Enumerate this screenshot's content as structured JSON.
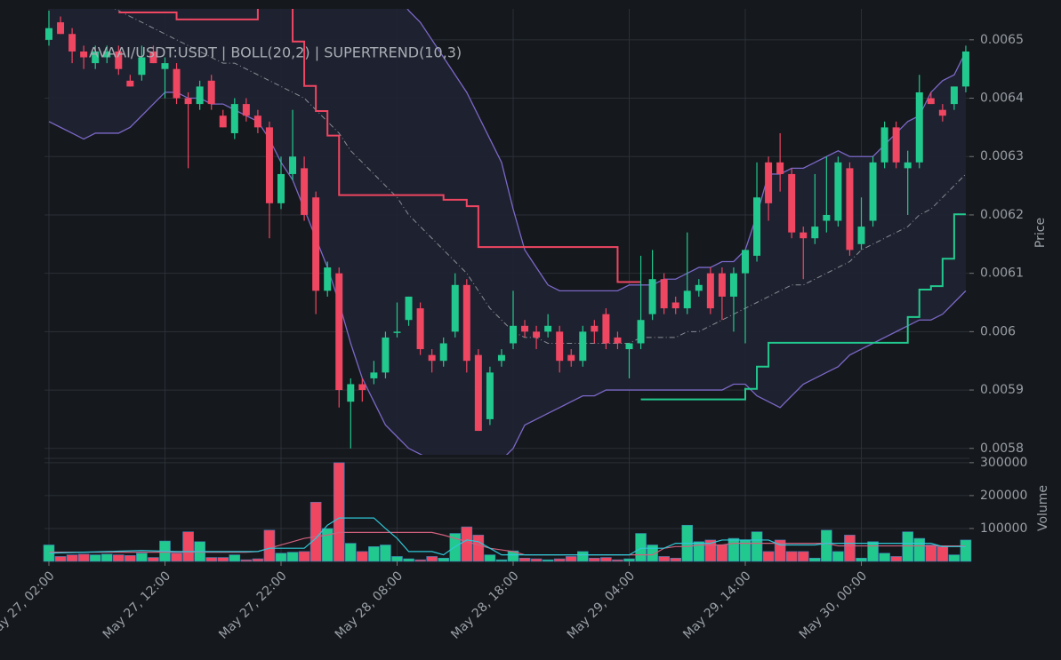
{
  "chart_data": {
    "type": "candlestick",
    "title": "AVAAI/USDT:USDT | BOLL(20,2) | SUPERTREND(10,3)",
    "ylabel": "Price",
    "y2label": "Volume",
    "categories": [
      "May 27, 02:00",
      null,
      null,
      null,
      null,
      null,
      null,
      null,
      null,
      null,
      "May 27, 12:00",
      null,
      null,
      null,
      null,
      null,
      null,
      null,
      null,
      null,
      "May 27, 22:00",
      null,
      null,
      null,
      null,
      null,
      null,
      null,
      null,
      null,
      "May 28, 08:00",
      null,
      null,
      null,
      null,
      null,
      null,
      null,
      null,
      null,
      "May 28, 18:00",
      null,
      null,
      null,
      null,
      null,
      null,
      null,
      null,
      null,
      "May 29, 04:00",
      null,
      null,
      null,
      null,
      null,
      null,
      null,
      null,
      null,
      "May 29, 14:00",
      null,
      null,
      null,
      null,
      null,
      null,
      null,
      null,
      null,
      "May 30, 00:00",
      null,
      null,
      null,
      null,
      null,
      null,
      null,
      null,
      null
    ],
    "open": [
      0.0065,
      0.00653,
      0.00651,
      0.00648,
      0.00646,
      0.00647,
      0.00648,
      0.00643,
      0.00644,
      0.00648,
      0.00645,
      0.00645,
      0.0064,
      0.00639,
      0.00643,
      0.00637,
      0.00634,
      0.00639,
      0.00637,
      0.00635,
      0.00622,
      0.00627,
      0.00628,
      0.00623,
      0.00607,
      0.0061,
      0.00588,
      0.00591,
      0.00592,
      0.00593,
      0.006,
      0.00602,
      0.00604,
      0.00596,
      0.00595,
      0.006,
      0.00608,
      0.00596,
      0.00585,
      0.00595,
      0.00598,
      0.00601,
      0.006,
      0.006,
      0.006,
      0.00596,
      0.00595,
      0.00601,
      0.00603,
      0.00599,
      0.00597,
      0.00598,
      0.00603,
      0.00609,
      0.00605,
      0.00604,
      0.00607,
      0.0061,
      0.0061,
      0.00606,
      0.0061,
      0.00613,
      0.00629,
      0.00629,
      0.00627,
      0.00617,
      0.00616,
      0.00619,
      0.00619,
      0.00628,
      0.00615,
      0.00619,
      0.00629,
      0.00635,
      0.00628,
      0.00629,
      0.0064,
      0.00638,
      0.00639,
      0.00642
    ],
    "high": [
      0.00655,
      0.00654,
      0.00652,
      0.00649,
      0.00649,
      0.00649,
      0.00649,
      0.00644,
      0.00649,
      0.00649,
      0.00647,
      0.00646,
      0.00641,
      0.00643,
      0.00644,
      0.00638,
      0.0064,
      0.0064,
      0.00638,
      0.00636,
      0.0063,
      0.00638,
      0.0063,
      0.00624,
      0.00612,
      0.00611,
      0.00592,
      0.00592,
      0.00595,
      0.006,
      0.00605,
      0.00606,
      0.00605,
      0.00597,
      0.00599,
      0.0061,
      0.00609,
      0.00597,
      0.00594,
      0.00597,
      0.00607,
      0.00602,
      0.00601,
      0.00603,
      0.00601,
      0.00597,
      0.00601,
      0.00602,
      0.00604,
      0.006,
      0.00598,
      0.00613,
      0.00614,
      0.0061,
      0.00606,
      0.00617,
      0.00609,
      0.00611,
      0.00611,
      0.00611,
      0.00614,
      0.00629,
      0.0063,
      0.00634,
      0.00628,
      0.00618,
      0.00627,
      0.0063,
      0.0063,
      0.00629,
      0.00623,
      0.0063,
      0.00636,
      0.00636,
      0.00631,
      0.00644,
      0.00641,
      0.00639,
      0.00642,
      0.00649
    ],
    "low": [
      0.00649,
      0.00651,
      0.00646,
      0.00645,
      0.00645,
      0.00646,
      0.00644,
      0.00642,
      0.00643,
      0.00646,
      0.0064,
      0.00639,
      0.00628,
      0.00638,
      0.00638,
      0.00635,
      0.00633,
      0.00636,
      0.00634,
      0.00616,
      0.00621,
      0.00626,
      0.00619,
      0.00603,
      0.00606,
      0.00587,
      0.0058,
      0.00588,
      0.00591,
      0.00592,
      0.00599,
      0.00601,
      0.00596,
      0.00593,
      0.00594,
      0.00599,
      0.00593,
      0.00583,
      0.00584,
      0.00594,
      0.00597,
      0.00599,
      0.00597,
      0.00599,
      0.00593,
      0.00594,
      0.00594,
      0.00598,
      0.00597,
      0.00597,
      0.00592,
      0.00597,
      0.00602,
      0.00603,
      0.00603,
      0.00603,
      0.00606,
      0.00603,
      0.00602,
      0.006,
      0.00598,
      0.00612,
      0.00619,
      0.00624,
      0.00616,
      0.00609,
      0.00615,
      0.00617,
      0.00618,
      0.00613,
      0.00614,
      0.00618,
      0.00628,
      0.00628,
      0.0062,
      0.00628,
      0.00639,
      0.00636,
      0.00638,
      0.00641
    ],
    "close": [
      0.00652,
      0.00651,
      0.00648,
      0.00647,
      0.00648,
      0.00648,
      0.00645,
      0.00642,
      0.00647,
      0.00646,
      0.00646,
      0.0064,
      0.00639,
      0.00642,
      0.00639,
      0.00635,
      0.00639,
      0.00637,
      0.00635,
      0.00622,
      0.00627,
      0.0063,
      0.0062,
      0.00607,
      0.00611,
      0.0059,
      0.00591,
      0.0059,
      0.00593,
      0.00599,
      0.006,
      0.00606,
      0.00597,
      0.00595,
      0.00598,
      0.00608,
      0.00595,
      0.00583,
      0.00593,
      0.00596,
      0.00601,
      0.006,
      0.00599,
      0.00601,
      0.00595,
      0.00595,
      0.006,
      0.006,
      0.00598,
      0.00598,
      0.00598,
      0.00602,
      0.00609,
      0.00604,
      0.00604,
      0.00607,
      0.00608,
      0.00604,
      0.00606,
      0.0061,
      0.00614,
      0.00623,
      0.00622,
      0.00627,
      0.00617,
      0.00616,
      0.00618,
      0.0062,
      0.00629,
      0.00614,
      0.00618,
      0.00629,
      0.00635,
      0.00629,
      0.00629,
      0.00641,
      0.00639,
      0.00637,
      0.00642,
      0.00648
    ],
    "volume": [
      50000,
      15000,
      20000,
      22000,
      20000,
      22000,
      20000,
      18000,
      25000,
      12000,
      62000,
      25000,
      90000,
      60000,
      12000,
      12000,
      20000,
      5000,
      8000,
      95000,
      25000,
      28000,
      30000,
      180000,
      100000,
      300000,
      55000,
      30000,
      45000,
      50000,
      15000,
      8000,
      5000,
      15000,
      10000,
      85000,
      105000,
      80000,
      20000,
      5000,
      32000,
      10000,
      8000,
      5000,
      8000,
      15000,
      30000,
      10000,
      12000,
      5000,
      8000,
      85000,
      50000,
      15000,
      10000,
      110000,
      60000,
      65000,
      50000,
      70000,
      65000,
      90000,
      30000,
      65000,
      30000,
      30000,
      10000,
      95000,
      30000,
      80000,
      10000,
      60000,
      25000,
      15000,
      90000,
      70000,
      50000,
      45000,
      20000,
      65000
    ],
    "bollinger": {
      "upper": [
        0.00668,
        0.00667,
        0.00667,
        0.00666,
        0.00665,
        0.00664,
        0.00663,
        0.00662,
        0.00661,
        0.0066,
        0.0066,
        0.00659,
        0.00659,
        0.00658,
        0.00658,
        0.00657,
        0.00657,
        0.00656,
        0.00656,
        0.00657,
        0.0066,
        0.00662,
        0.00664,
        0.00667,
        0.00668,
        0.0067,
        0.00669,
        0.00667,
        0.00665,
        0.00662,
        0.00658,
        0.00655,
        0.00653,
        0.0065,
        0.00647,
        0.00644,
        0.00641,
        0.00637,
        0.00633,
        0.00629,
        0.00621,
        0.00614,
        0.00611,
        0.00608,
        0.00607,
        0.00607,
        0.00607,
        0.00607,
        0.00607,
        0.00607,
        0.00608,
        0.00608,
        0.00608,
        0.00609,
        0.00609,
        0.0061,
        0.00611,
        0.00611,
        0.00612,
        0.00612,
        0.00614,
        0.0062,
        0.00627,
        0.00627,
        0.00628,
        0.00628,
        0.00629,
        0.0063,
        0.00631,
        0.0063,
        0.0063,
        0.0063,
        0.00632,
        0.00634,
        0.00636,
        0.00637,
        0.00641,
        0.00643,
        0.00644,
        0.00648
      ],
      "middle": [
        0.00662,
        0.00661,
        0.0066,
        0.00659,
        0.00657,
        0.00656,
        0.00655,
        0.00654,
        0.00653,
        0.00652,
        0.00651,
        0.0065,
        0.00649,
        0.00648,
        0.00647,
        0.00646,
        0.00646,
        0.00645,
        0.00644,
        0.00643,
        0.00642,
        0.00641,
        0.0064,
        0.00638,
        0.00636,
        0.00634,
        0.00631,
        0.00629,
        0.00627,
        0.00625,
        0.00623,
        0.0062,
        0.00618,
        0.00616,
        0.00614,
        0.00612,
        0.0061,
        0.00607,
        0.00604,
        0.00602,
        0.006,
        0.00599,
        0.00599,
        0.00598,
        0.00598,
        0.00598,
        0.00598,
        0.00598,
        0.00598,
        0.00598,
        0.00598,
        0.00599,
        0.00599,
        0.00599,
        0.00599,
        0.006,
        0.006,
        0.00601,
        0.00602,
        0.00603,
        0.00604,
        0.00605,
        0.00606,
        0.00607,
        0.00608,
        0.00608,
        0.00609,
        0.0061,
        0.00611,
        0.00612,
        0.00614,
        0.00615,
        0.00616,
        0.00617,
        0.00618,
        0.0062,
        0.00621,
        0.00623,
        0.00625,
        0.00627
      ],
      "lower": [
        0.00636,
        0.00635,
        0.00634,
        0.00633,
        0.00634,
        0.00634,
        0.00634,
        0.00635,
        0.00637,
        0.00639,
        0.00641,
        0.00641,
        0.0064,
        0.0064,
        0.00639,
        0.00639,
        0.00638,
        0.00637,
        0.00636,
        0.00633,
        0.00629,
        0.00626,
        0.00621,
        0.00616,
        0.00611,
        0.00605,
        0.00598,
        0.00592,
        0.00588,
        0.00584,
        0.00582,
        0.0058,
        0.00579,
        0.00578,
        0.00577,
        0.00577,
        0.00576,
        0.00576,
        0.00577,
        0.00578,
        0.0058,
        0.00584,
        0.00585,
        0.00586,
        0.00587,
        0.00588,
        0.00589,
        0.00589,
        0.0059,
        0.0059,
        0.0059,
        0.0059,
        0.0059,
        0.0059,
        0.0059,
        0.0059,
        0.0059,
        0.0059,
        0.0059,
        0.00591,
        0.00591,
        0.00589,
        0.00588,
        0.00587,
        0.00589,
        0.00591,
        0.00592,
        0.00593,
        0.00594,
        0.00596,
        0.00597,
        0.00598,
        0.00599,
        0.006,
        0.00601,
        0.00602,
        0.00602,
        0.00603,
        0.00605,
        0.00607
      ]
    },
    "supertrend": {
      "down": [
        null,
        null,
        null,
        null,
        null,
        null,
        0.006547,
        0.006547,
        0.006547,
        0.006547,
        0.006547,
        0.006535,
        0.006535,
        0.006535,
        0.006535,
        0.006535,
        0.006535,
        0.006535,
        0.00656,
        0.00656,
        0.00656,
        0.006497,
        0.006421,
        0.006378,
        0.006336,
        0.006234,
        0.006234,
        0.006234,
        0.006234,
        0.006234,
        0.006234,
        0.006234,
        0.006234,
        0.006234,
        0.006226,
        0.006226,
        0.006215,
        0.006145,
        0.006145,
        0.006145,
        0.006145,
        0.006145,
        0.006145,
        0.006145,
        0.006145,
        0.006145,
        0.006145,
        0.006145,
        0.006145,
        0.006085,
        0.006085,
        0.006085,
        null,
        null,
        null,
        null,
        null,
        null,
        null,
        null,
        null,
        null,
        null,
        null,
        null,
        null,
        null,
        null,
        null,
        null,
        null,
        null,
        null,
        null,
        null,
        null,
        null,
        null,
        null,
        null
      ],
      "up": [
        null,
        null,
        null,
        null,
        null,
        null,
        null,
        null,
        null,
        null,
        null,
        null,
        null,
        null,
        null,
        null,
        null,
        null,
        null,
        null,
        null,
        null,
        null,
        null,
        null,
        null,
        null,
        null,
        null,
        null,
        null,
        null,
        null,
        null,
        null,
        null,
        null,
        null,
        null,
        null,
        null,
        null,
        null,
        null,
        null,
        null,
        null,
        null,
        null,
        null,
        null,
        0.005884,
        0.005884,
        0.005884,
        0.005884,
        0.005884,
        0.005884,
        0.005884,
        0.005884,
        0.005884,
        0.005902,
        0.00594,
        0.005981,
        0.005981,
        0.005981,
        0.005981,
        0.005981,
        0.005981,
        0.005981,
        0.005981,
        0.005981,
        0.005981,
        0.005981,
        0.005981,
        0.006025,
        0.006072,
        0.006078,
        0.006125,
        0.006201,
        0.006201
      ]
    },
    "volume_ma": {
      "fast": [
        25000,
        26000,
        27000,
        28000,
        29000,
        30000,
        31000,
        32000,
        33000,
        32000,
        31000,
        30000,
        30000,
        30000,
        30000,
        30000,
        30000,
        30000,
        30000,
        40000,
        40000,
        40000,
        40000,
        70000,
        110000,
        132000,
        132000,
        132000,
        132000,
        100000,
        70000,
        30000,
        30000,
        30000,
        20000,
        45000,
        65000,
        60000,
        40000,
        20000,
        20000,
        20000,
        20000,
        20000,
        20000,
        20000,
        20000,
        20000,
        20000,
        20000,
        20000,
        40000,
        40000,
        40000,
        55000,
        55000,
        55000,
        55000,
        65000,
        65000,
        65000,
        65000,
        65000,
        50000,
        50000,
        50000,
        50000,
        55000,
        55000,
        55000,
        55000,
        55000,
        55000,
        55000,
        55000,
        55000,
        55000,
        45000,
        45000,
        45000
      ],
      "slow": [
        28000,
        28000,
        28000,
        28000,
        28000,
        28000,
        28000,
        28000,
        28000,
        28000,
        28000,
        28000,
        28000,
        28000,
        28000,
        28000,
        28000,
        28000,
        30000,
        40000,
        50000,
        60000,
        70000,
        75000,
        80000,
        88000,
        88000,
        88000,
        88000,
        88000,
        88000,
        88000,
        88000,
        88000,
        80000,
        70000,
        60000,
        50000,
        40000,
        35000,
        30000,
        20000,
        20000,
        20000,
        20000,
        20000,
        20000,
        20000,
        20000,
        20000,
        20000,
        20000,
        20000,
        40000,
        45000,
        45000,
        50000,
        50000,
        50000,
        55000,
        55000,
        55000,
        55000,
        55000,
        55000,
        55000,
        55000,
        55000,
        47000,
        47000,
        47000,
        47000,
        47000,
        47000,
        47000,
        47000,
        47000,
        47000,
        47000,
        47000
      ]
    },
    "ylim": [
      0.005789,
      0.006553
    ],
    "yticks": [
      0.0058,
      0.0059,
      0.006,
      0.0061,
      0.0062,
      0.0063,
      0.0064,
      0.0065
    ],
    "y2lim": [
      0,
      305000
    ],
    "y2ticks": [
      100000,
      200000,
      300000
    ],
    "colors": {
      "up": "#22c98e",
      "down": "#ef4662",
      "band": "#7b68c8",
      "band_fill": "#1f2232",
      "fast_ma": "#2ec8d8",
      "slow_ma": "#d0617e"
    },
    "grid": true
  }
}
